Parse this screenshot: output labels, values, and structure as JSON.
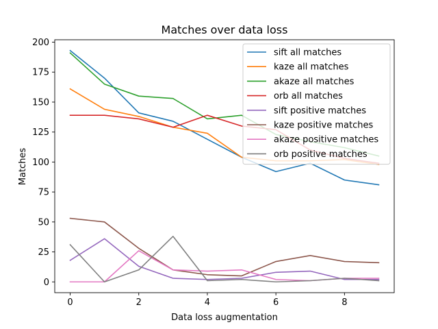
{
  "chart_data": {
    "type": "line",
    "title": "Matches over data loss",
    "xlabel": "Data loss augmentation",
    "ylabel": "Matches",
    "x": [
      0,
      1,
      2,
      3,
      4,
      5,
      6,
      7,
      8,
      9
    ],
    "xlim": [
      -0.45,
      9.45
    ],
    "ylim": [
      -9,
      202
    ],
    "xticks": [
      0,
      2,
      4,
      6,
      8
    ],
    "yticks": [
      0,
      25,
      50,
      75,
      100,
      125,
      150,
      175,
      200
    ],
    "grid": false,
    "legend_position": "top-right",
    "series": [
      {
        "name": "sift all matches",
        "color": "#1f77b4",
        "values": [
          193,
          170,
          141,
          134,
          119,
          104,
          92,
          99,
          85,
          81
        ]
      },
      {
        "name": "kaze all matches",
        "color": "#ff7f0e",
        "values": [
          161,
          144,
          138,
          129,
          124,
          104,
          101,
          101,
          102,
          98
        ]
      },
      {
        "name": "akaze all matches",
        "color": "#2ca02c",
        "values": [
          191,
          165,
          155,
          153,
          136,
          139,
          123,
          117,
          112,
          105
        ]
      },
      {
        "name": "orb all matches",
        "color": "#d62728",
        "values": [
          139,
          139,
          136,
          129,
          139,
          130,
          127,
          110,
          103,
          99
        ]
      },
      {
        "name": "sift positive matches",
        "color": "#9467bd",
        "values": [
          18,
          36,
          13,
          3,
          2,
          3,
          8,
          9,
          2,
          2
        ]
      },
      {
        "name": "kaze positive matches",
        "color": "#8c564b",
        "values": [
          53,
          50,
          28,
          10,
          6,
          5,
          17,
          22,
          17,
          16
        ]
      },
      {
        "name": "akaze positive matches",
        "color": "#e377c2",
        "values": [
          0,
          0,
          26,
          10,
          9,
          10,
          2,
          1,
          3,
          3
        ]
      },
      {
        "name": "orb positive matches",
        "color": "#7f7f7f",
        "values": [
          31,
          0,
          10,
          38,
          1,
          2,
          0,
          1,
          3,
          1
        ]
      }
    ]
  }
}
